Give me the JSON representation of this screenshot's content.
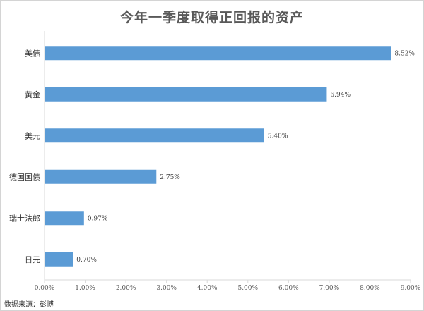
{
  "chart_data": {
    "type": "bar",
    "orientation": "horizontal",
    "title": "今年一季度取得正回报的资产",
    "categories": [
      "美债",
      "黄金",
      "美元",
      "德国国债",
      "瑞士法郎",
      "日元"
    ],
    "values": [
      8.52,
      6.94,
      5.4,
      2.75,
      0.97,
      0.7
    ],
    "value_labels": [
      "8.52%",
      "6.94%",
      "5.40%",
      "2.75%",
      "0.97%",
      "0.70%"
    ],
    "xlim": [
      0,
      9
    ],
    "x_ticks": [
      0,
      1,
      2,
      3,
      4,
      5,
      6,
      7,
      8,
      9
    ],
    "x_tick_labels": [
      "0.00%",
      "1.00%",
      "2.00%",
      "3.00%",
      "4.00%",
      "5.00%",
      "6.00%",
      "7.00%",
      "8.00%",
      "9.00%"
    ],
    "grid": false,
    "bar_color": "#5b9bd5",
    "axis_color": "#d9d9d9",
    "source": "数据来源：彭博"
  }
}
